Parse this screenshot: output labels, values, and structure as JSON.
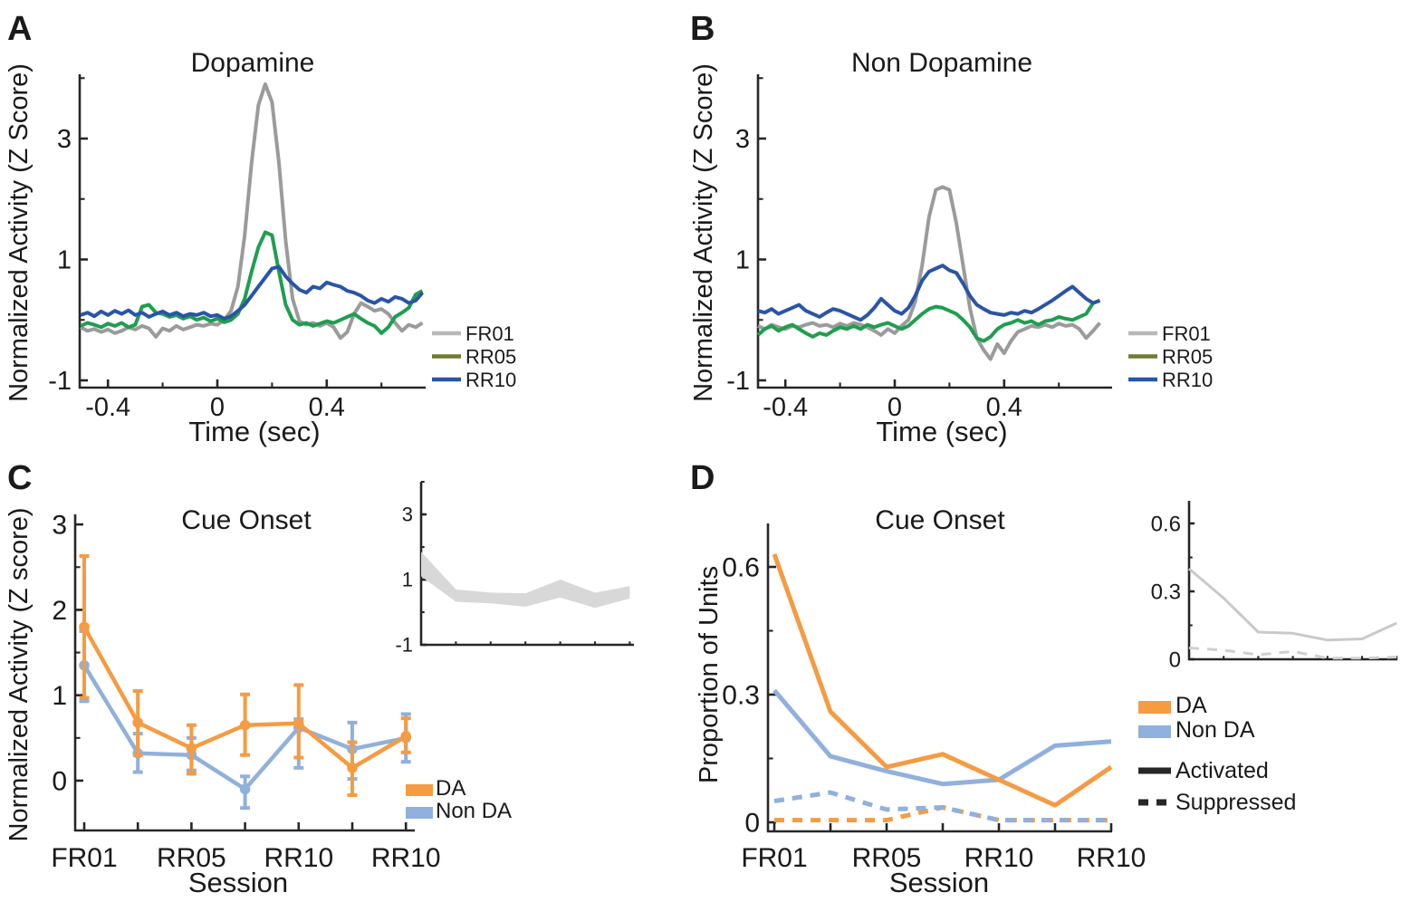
{
  "figure": {
    "panels": [
      {
        "id": "A",
        "label": "A",
        "title": "Dopamine",
        "xlabel": "Time (sec)",
        "ylabel": "Normalized Activity (Z Score)"
      },
      {
        "id": "B",
        "label": "B",
        "title": "Non Dopamine",
        "xlabel": "Time (sec)",
        "ylabel": "Normalized Activity (Z Score)"
      },
      {
        "id": "C",
        "label": "C",
        "title": "Cue Onset",
        "xlabel": "Session",
        "ylabel": "Normalized Activity (Z score)"
      },
      {
        "id": "D",
        "label": "D",
        "title": "Cue Onset",
        "xlabel": "Session",
        "ylabel": "Proportion of Units"
      }
    ]
  },
  "colors": {
    "axis": "#262626",
    "text": "#1a1a1a",
    "fr01_line": "#9b9b9b",
    "rr05_line": "#1f9e4f",
    "rr10_line": "#2a55a5",
    "fr01_legend_swatch": "#b8b8b8",
    "rr05_legend_swatch": "#6e7c2c",
    "rr10_legend_swatch": "#2a55a5",
    "da_orange": "#f59b42",
    "non_da_blue": "#90b0dd",
    "inset_band": "#d8d8d8",
    "inset_solid": "#c9c9c9",
    "inset_dashed": "#cfcfcf"
  },
  "legend_ab": {
    "entries": [
      {
        "label": "FR01",
        "color": "#b8b8b8"
      },
      {
        "label": "RR05",
        "color": "#6e7c2c"
      },
      {
        "label": "RR10",
        "color": "#2a55a5"
      }
    ]
  },
  "legend_c": {
    "entries": [
      {
        "label": "DA",
        "color": "#f59b42"
      },
      {
        "label": "Non DA",
        "color": "#90b0dd"
      }
    ]
  },
  "legend_d": {
    "entries": [
      {
        "label": "DA",
        "color": "#f59b42"
      },
      {
        "label": "Non DA",
        "color": "#90b0dd"
      }
    ],
    "styles": [
      {
        "label": "Activated",
        "dash": false
      },
      {
        "label": "Suppressed",
        "dash": true
      }
    ]
  },
  "chart_data": [
    {
      "panel": "A",
      "type": "line",
      "title": "Dopamine",
      "xlabel": "Time (sec)",
      "ylabel": "Normalized Activity (Z Score)",
      "xlim": [
        -0.5,
        0.76
      ],
      "ylim": [
        -1.1,
        4.05
      ],
      "grid": false,
      "legend_position": "right-bottom-outside",
      "x_major_ticks": [
        -0.4,
        0,
        0.4
      ],
      "x_tick_labels": [
        "-0.4",
        "0",
        "0.4"
      ],
      "x_minor_ticks": [
        -0.2,
        0.2,
        0.6
      ],
      "y_major_ticks": [
        -1,
        1,
        3
      ],
      "y_tick_labels": [
        "-1",
        "1",
        "3"
      ],
      "y_minor_ticks": [
        0,
        2,
        4
      ],
      "x_start": -0.5,
      "x_step": 0.025,
      "series": [
        {
          "name": "FR01",
          "color": "#9b9b9b",
          "values": [
            -0.12,
            -0.18,
            -0.15,
            -0.2,
            -0.16,
            -0.22,
            -0.18,
            -0.12,
            -0.16,
            -0.1,
            -0.14,
            -0.28,
            -0.14,
            -0.18,
            -0.1,
            -0.16,
            -0.12,
            -0.08,
            -0.1,
            -0.06,
            -0.08,
            0.0,
            0.15,
            0.55,
            1.4,
            2.6,
            3.55,
            3.9,
            3.6,
            2.6,
            1.3,
            0.35,
            -0.02,
            -0.08,
            -0.05,
            -0.1,
            -0.05,
            -0.12,
            -0.3,
            -0.2,
            0.1,
            0.28,
            0.22,
            0.15,
            0.18,
            0.1,
            -0.05,
            -0.18,
            -0.08,
            -0.12,
            -0.05
          ]
        },
        {
          "name": "RR05",
          "color": "#1f9e4f",
          "values": [
            -0.1,
            -0.05,
            -0.08,
            -0.12,
            -0.06,
            -0.1,
            -0.05,
            -0.12,
            -0.08,
            0.22,
            0.25,
            0.12,
            0.1,
            0.05,
            0.08,
            0.02,
            0.06,
            0.0,
            0.04,
            -0.02,
            0.02,
            -0.04,
            0.0,
            0.1,
            0.35,
            0.8,
            1.2,
            1.45,
            1.4,
            0.8,
            0.25,
            0.0,
            -0.08,
            -0.05,
            -0.1,
            -0.06,
            -0.02,
            -0.05,
            0.0,
            0.05,
            0.1,
            0.02,
            -0.05,
            -0.1,
            -0.22,
            -0.12,
            0.05,
            0.12,
            0.2,
            0.42,
            0.48
          ]
        },
        {
          "name": "RR10",
          "color": "#2a55a5",
          "values": [
            0.08,
            0.12,
            0.06,
            0.14,
            0.08,
            0.15,
            0.1,
            0.16,
            0.08,
            0.12,
            0.05,
            0.1,
            0.14,
            0.08,
            0.12,
            0.06,
            0.1,
            0.08,
            0.12,
            0.06,
            0.08,
            0.02,
            0.06,
            0.15,
            0.25,
            0.4,
            0.55,
            0.7,
            0.85,
            0.88,
            0.72,
            0.6,
            0.5,
            0.45,
            0.55,
            0.52,
            0.62,
            0.58,
            0.55,
            0.48,
            0.45,
            0.4,
            0.32,
            0.28,
            0.35,
            0.3,
            0.38,
            0.35,
            0.28,
            0.32,
            0.45
          ]
        }
      ]
    },
    {
      "panel": "B",
      "type": "line",
      "title": "Non Dopamine",
      "xlabel": "Time (sec)",
      "ylabel": "Normalized Activity (Z Score)",
      "xlim": [
        -0.5,
        0.76
      ],
      "ylim": [
        -1.1,
        4.05
      ],
      "grid": false,
      "legend_position": "right-bottom-outside",
      "x_major_ticks": [
        -0.4,
        0,
        0.4
      ],
      "x_tick_labels": [
        "-0.4",
        "0",
        "0.4"
      ],
      "x_minor_ticks": [
        -0.2,
        0.2,
        0.6
      ],
      "y_major_ticks": [
        -1,
        1,
        3
      ],
      "y_tick_labels": [
        "-1",
        "1",
        "3"
      ],
      "y_minor_ticks": [
        0,
        2,
        4
      ],
      "x_start": -0.5,
      "x_step": 0.025,
      "series": [
        {
          "name": "FR01",
          "color": "#9b9b9b",
          "values": [
            -0.1,
            -0.15,
            -0.08,
            -0.12,
            -0.15,
            -0.1,
            -0.12,
            -0.08,
            -0.05,
            -0.1,
            -0.08,
            -0.12,
            -0.06,
            -0.1,
            -0.05,
            -0.08,
            -0.12,
            -0.18,
            -0.25,
            -0.15,
            -0.22,
            -0.1,
            0.0,
            0.3,
            0.9,
            1.7,
            2.15,
            2.2,
            2.15,
            1.6,
            0.9,
            0.2,
            -0.3,
            -0.5,
            -0.65,
            -0.4,
            -0.55,
            -0.35,
            -0.2,
            -0.15,
            -0.1,
            -0.12,
            -0.08,
            -0.12,
            -0.06,
            -0.1,
            -0.08,
            -0.15,
            -0.3,
            -0.18,
            -0.05
          ]
        },
        {
          "name": "RR05",
          "color": "#1f9e4f",
          "values": [
            -0.25,
            -0.15,
            -0.1,
            -0.18,
            -0.12,
            -0.08,
            -0.15,
            -0.22,
            -0.28,
            -0.22,
            -0.25,
            -0.18,
            -0.12,
            -0.15,
            -0.1,
            -0.15,
            -0.08,
            -0.12,
            -0.08,
            -0.05,
            -0.1,
            -0.15,
            -0.1,
            0.0,
            0.1,
            0.18,
            0.22,
            0.2,
            0.15,
            0.1,
            0.0,
            -0.12,
            -0.3,
            -0.35,
            -0.28,
            -0.15,
            -0.08,
            -0.05,
            0.0,
            -0.05,
            -0.02,
            -0.08,
            -0.02,
            0.0,
            0.05,
            0.02,
            0.0,
            0.05,
            0.1,
            0.28,
            0.32
          ]
        },
        {
          "name": "RR10",
          "color": "#2a55a5",
          "values": [
            0.15,
            0.12,
            0.18,
            0.1,
            0.15,
            0.2,
            0.25,
            0.15,
            0.1,
            0.05,
            0.12,
            0.18,
            0.15,
            0.1,
            0.05,
            0.0,
            0.08,
            0.2,
            0.35,
            0.25,
            0.15,
            0.1,
            0.2,
            0.4,
            0.65,
            0.8,
            0.85,
            0.9,
            0.82,
            0.78,
            0.6,
            0.4,
            0.25,
            0.18,
            0.12,
            0.1,
            0.08,
            0.12,
            0.1,
            0.15,
            0.12,
            0.18,
            0.25,
            0.32,
            0.4,
            0.48,
            0.55,
            0.45,
            0.35,
            0.28,
            0.32
          ]
        }
      ]
    },
    {
      "panel": "C",
      "type": "line-errorbar",
      "title": "Cue Onset",
      "xlabel": "Session",
      "ylabel": "Normalized Activity (Z score)",
      "ylim": [
        -0.55,
        3.1
      ],
      "grid": false,
      "legend_position": "right-bottom-outside",
      "x_major_ticks": [
        1,
        2,
        3,
        4,
        5,
        6,
        7
      ],
      "x_tick_labels": [
        "FR01",
        "",
        "RR05",
        "",
        "RR10",
        "",
        "RR10"
      ],
      "y_major_ticks": [
        0,
        1,
        2,
        3
      ],
      "y_tick_labels": [
        "0",
        "1",
        "2",
        "3"
      ],
      "y_minor_ticks": [
        0.5,
        1.5,
        2.5
      ],
      "series": [
        {
          "name": "Non DA",
          "color": "#90b0dd",
          "values": [
            1.35,
            0.32,
            0.3,
            -0.1,
            0.62,
            0.37,
            0.5
          ],
          "err_lo": [
            0.93,
            0.1,
            0.12,
            -0.32,
            0.15,
            0.02,
            0.22
          ],
          "err_hi": [
            1.75,
            0.55,
            0.5,
            0.05,
            0.72,
            0.68,
            0.78
          ]
        },
        {
          "name": "DA",
          "color": "#f59b42",
          "values": [
            1.8,
            0.68,
            0.38,
            0.65,
            0.67,
            0.15,
            0.52
          ],
          "err_lo": [
            0.97,
            0.3,
            0.08,
            0.3,
            0.27,
            -0.17,
            0.33
          ],
          "err_hi": [
            2.63,
            1.05,
            0.65,
            1.01,
            1.12,
            0.45,
            0.73
          ]
        }
      ]
    },
    {
      "panel": "D",
      "type": "line",
      "title": "Cue Onset",
      "xlabel": "Session",
      "ylabel": "Proportion of Units",
      "ylim": [
        0,
        0.68
      ],
      "grid": false,
      "legend_position": "right-outside",
      "x_major_ticks": [
        1,
        2,
        3,
        4,
        5,
        6,
        7
      ],
      "x_tick_labels": [
        "FR01",
        "",
        "RR05",
        "",
        "RR10",
        "",
        "RR10"
      ],
      "y_major_ticks": [
        0,
        0.3,
        0.6
      ],
      "y_tick_labels": [
        "0",
        "0.3",
        "0.6"
      ],
      "y_minor_ticks": [
        0.15,
        0.45
      ],
      "series": [
        {
          "name": "DA Suppressed",
          "color": "#f59b42",
          "dash": true,
          "values": [
            0.005,
            0.005,
            0.005,
            0.035,
            0.005,
            0.005,
            0.005
          ]
        },
        {
          "name": "Non DA Suppressed",
          "color": "#90b0dd",
          "dash": true,
          "values": [
            0.05,
            0.07,
            0.03,
            0.035,
            0.005,
            0.005,
            0.005
          ]
        },
        {
          "name": "Non DA Activated",
          "color": "#90b0dd",
          "dash": false,
          "values": [
            0.31,
            0.155,
            0.12,
            0.09,
            0.1,
            0.18,
            0.19
          ]
        },
        {
          "name": "DA Activated",
          "color": "#f59b42",
          "dash": false,
          "values": [
            0.63,
            0.26,
            0.13,
            0.16,
            0.1,
            0.04,
            0.13
          ]
        }
      ]
    },
    {
      "panel": "C-inset",
      "type": "band",
      "title": "",
      "ylabel": "",
      "xlabel": "",
      "y_major_ticks": [
        -1,
        1,
        3
      ],
      "y_tick_labels": [
        "-1",
        "1",
        "3"
      ],
      "y_minor_ticks": [
        0,
        2,
        4
      ],
      "x_minor_ticks": [
        2,
        3,
        4,
        5,
        6,
        7
      ],
      "band_color": "#d8d8d8",
      "band_top": [
        1.85,
        0.7,
        0.6,
        0.58,
        1.0,
        0.6,
        0.8
      ],
      "band_bottom": [
        1.1,
        0.32,
        0.27,
        0.17,
        0.45,
        0.13,
        0.42
      ]
    },
    {
      "panel": "D-inset",
      "type": "line",
      "title": "",
      "ylabel": "",
      "xlabel": "",
      "y_major_ticks": [
        0,
        0.3,
        0.6
      ],
      "y_tick_labels": [
        "0",
        "0.3",
        "0.6"
      ],
      "y_minor_ticks": [
        0.15,
        0.45
      ],
      "x_minor_ticks": [
        2,
        3,
        4,
        5,
        6,
        7
      ],
      "series": [
        {
          "name": "Activated",
          "color": "#c9c9c9",
          "dash": false,
          "values": [
            0.4,
            0.27,
            0.12,
            0.115,
            0.085,
            0.09,
            0.16
          ]
        },
        {
          "name": "Suppressed",
          "color": "#cfcfcf",
          "dash": true,
          "values": [
            0.05,
            0.04,
            0.02,
            0.035,
            0.005,
            0.005,
            0.01
          ]
        }
      ]
    }
  ]
}
